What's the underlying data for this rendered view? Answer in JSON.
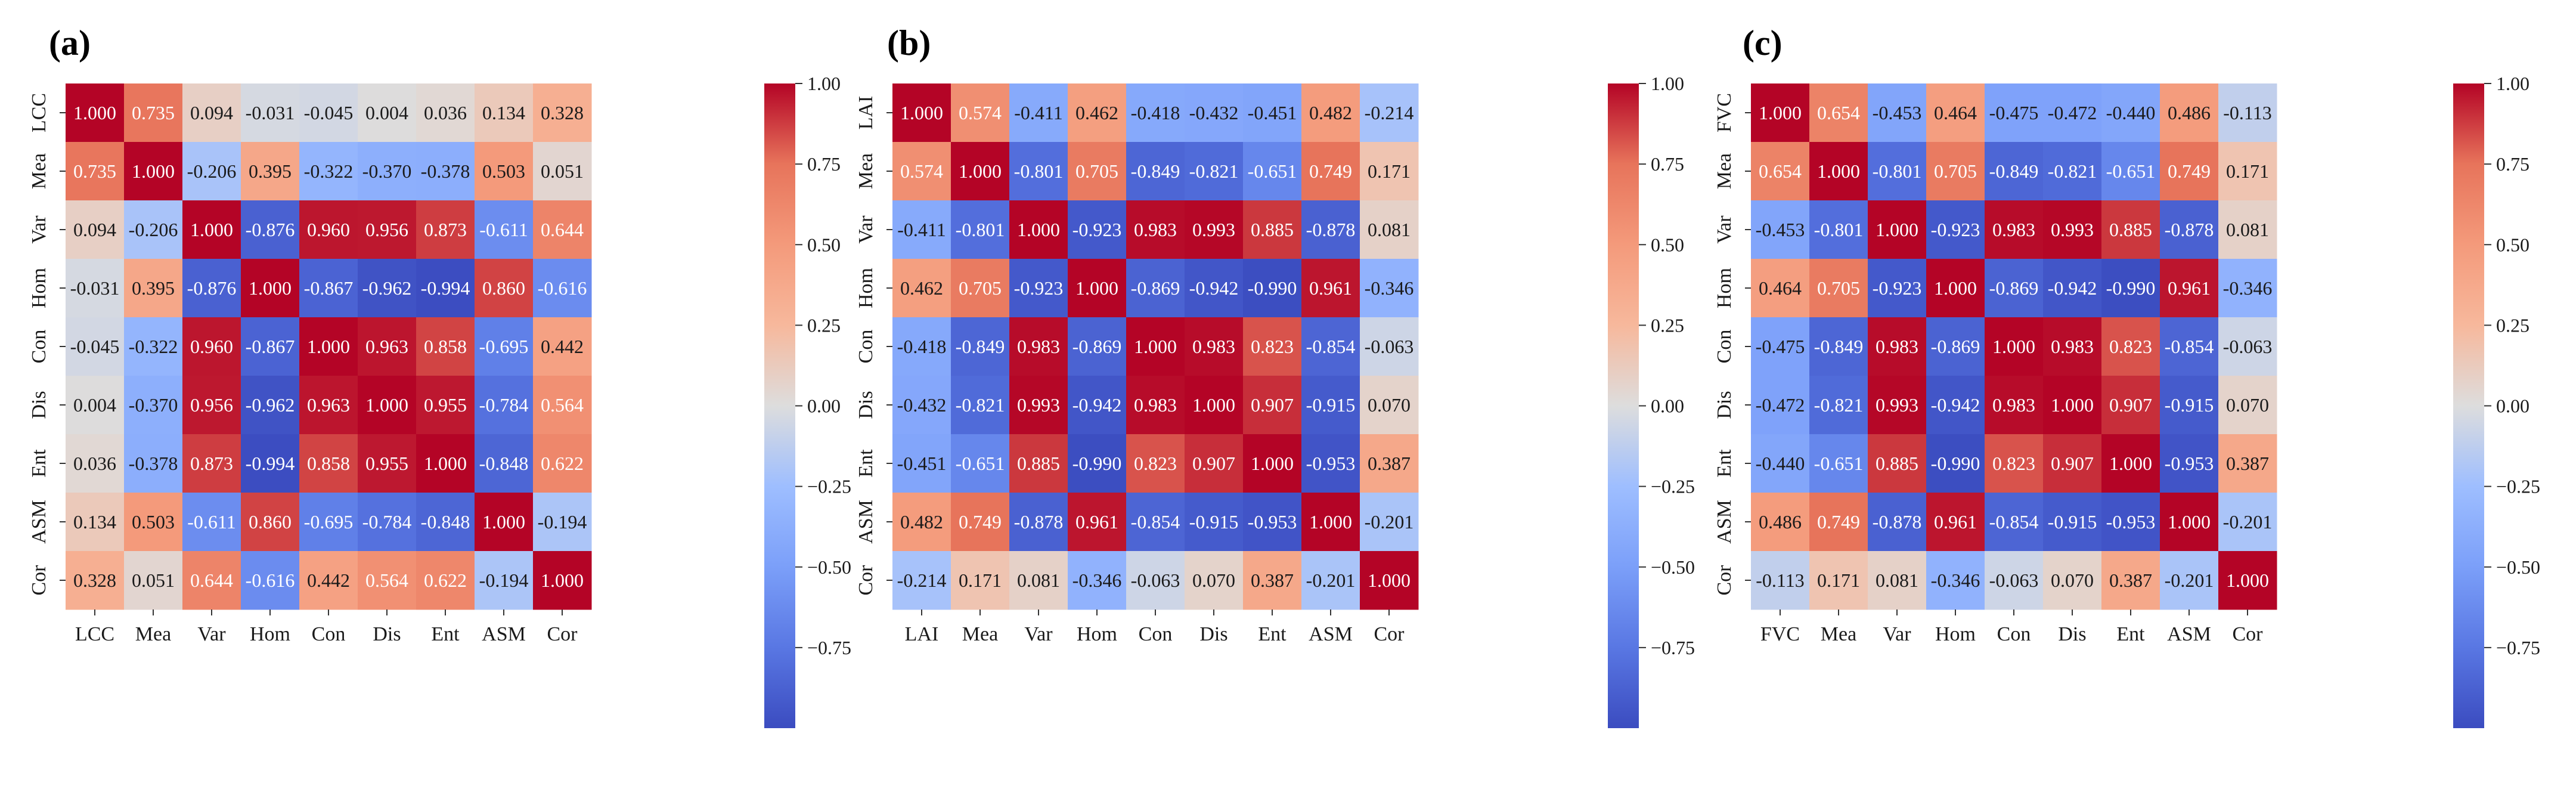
{
  "chart_data": [
    {
      "type": "heatmap",
      "panel_label": "(a)",
      "categories": [
        "LCC",
        "Mea",
        "Var",
        "Hom",
        "Con",
        "Dis",
        "Ent",
        "ASM",
        "Cor"
      ],
      "values": [
        [
          1.0,
          0.735,
          0.094,
          -0.031,
          -0.045,
          0.004,
          0.036,
          0.134,
          0.328
        ],
        [
          0.735,
          1.0,
          -0.206,
          0.395,
          -0.322,
          -0.37,
          -0.378,
          0.503,
          0.051
        ],
        [
          0.094,
          -0.206,
          1.0,
          -0.876,
          0.96,
          0.956,
          0.873,
          -0.611,
          0.644
        ],
        [
          -0.031,
          0.395,
          -0.876,
          1.0,
          -0.867,
          -0.962,
          -0.994,
          0.86,
          -0.616
        ],
        [
          -0.045,
          -0.322,
          0.96,
          -0.867,
          1.0,
          0.963,
          0.858,
          -0.695,
          0.442
        ],
        [
          0.004,
          -0.37,
          0.956,
          -0.962,
          0.963,
          1.0,
          0.955,
          -0.784,
          0.564
        ],
        [
          0.036,
          -0.378,
          0.873,
          -0.994,
          0.858,
          0.955,
          1.0,
          -0.848,
          0.622
        ],
        [
          0.134,
          0.503,
          -0.611,
          0.86,
          -0.695,
          -0.784,
          -0.848,
          1.0,
          -0.194
        ],
        [
          0.328,
          0.051,
          0.644,
          -0.616,
          0.442,
          0.564,
          0.622,
          -0.194,
          1.0
        ]
      ],
      "colorbar": {
        "vmin": -1.0,
        "vmax": 1.0,
        "ticks": [
          "1.00",
          "0.75",
          "0.50",
          "0.25",
          "0.00",
          "−0.25",
          "−0.50",
          "−0.75"
        ],
        "tick_values": [
          1.0,
          0.75,
          0.5,
          0.25,
          0.0,
          -0.25,
          -0.5,
          -0.75
        ]
      }
    },
    {
      "type": "heatmap",
      "panel_label": "(b)",
      "categories": [
        "LAI",
        "Mea",
        "Var",
        "Hom",
        "Con",
        "Dis",
        "Ent",
        "ASM",
        "Cor"
      ],
      "values": [
        [
          1.0,
          0.574,
          -0.411,
          0.462,
          -0.418,
          -0.432,
          -0.451,
          0.482,
          -0.214
        ],
        [
          0.574,
          1.0,
          -0.801,
          0.705,
          -0.849,
          -0.821,
          -0.651,
          0.749,
          0.171
        ],
        [
          -0.411,
          -0.801,
          1.0,
          -0.923,
          0.983,
          0.993,
          0.885,
          -0.878,
          0.081
        ],
        [
          0.462,
          0.705,
          -0.923,
          1.0,
          -0.869,
          -0.942,
          -0.99,
          0.961,
          -0.346
        ],
        [
          -0.418,
          -0.849,
          0.983,
          -0.869,
          1.0,
          0.983,
          0.823,
          -0.854,
          -0.063
        ],
        [
          -0.432,
          -0.821,
          0.993,
          -0.942,
          0.983,
          1.0,
          0.907,
          -0.915,
          0.07
        ],
        [
          -0.451,
          -0.651,
          0.885,
          -0.99,
          0.823,
          0.907,
          1.0,
          -0.953,
          0.387
        ],
        [
          0.482,
          0.749,
          -0.878,
          0.961,
          -0.854,
          -0.915,
          -0.953,
          1.0,
          -0.201
        ],
        [
          -0.214,
          0.171,
          0.081,
          -0.346,
          -0.063,
          0.07,
          0.387,
          -0.201,
          1.0
        ]
      ],
      "colorbar": {
        "vmin": -1.0,
        "vmax": 1.0,
        "ticks": [
          "1.00",
          "0.75",
          "0.50",
          "0.25",
          "0.00",
          "−0.25",
          "−0.50",
          "−0.75"
        ],
        "tick_values": [
          1.0,
          0.75,
          0.5,
          0.25,
          0.0,
          -0.25,
          -0.5,
          -0.75
        ]
      }
    },
    {
      "type": "heatmap",
      "panel_label": "(c)",
      "categories": [
        "FVC",
        "Mea",
        "Var",
        "Hom",
        "Con",
        "Dis",
        "Ent",
        "ASM",
        "Cor"
      ],
      "values": [
        [
          1.0,
          0.654,
          -0.453,
          0.464,
          -0.475,
          -0.472,
          -0.44,
          0.486,
          -0.113
        ],
        [
          0.654,
          1.0,
          -0.801,
          0.705,
          -0.849,
          -0.821,
          -0.651,
          0.749,
          0.171
        ],
        [
          -0.453,
          -0.801,
          1.0,
          -0.923,
          0.983,
          0.993,
          0.885,
          -0.878,
          0.081
        ],
        [
          0.464,
          0.705,
          -0.923,
          1.0,
          -0.869,
          -0.942,
          -0.99,
          0.961,
          -0.346
        ],
        [
          -0.475,
          -0.849,
          0.983,
          -0.869,
          1.0,
          0.983,
          0.823,
          -0.854,
          -0.063
        ],
        [
          -0.472,
          -0.821,
          0.993,
          -0.942,
          0.983,
          1.0,
          0.907,
          -0.915,
          0.07
        ],
        [
          -0.44,
          -0.651,
          0.885,
          -0.99,
          0.823,
          0.907,
          1.0,
          -0.953,
          0.387
        ],
        [
          0.486,
          0.749,
          -0.878,
          0.961,
          -0.854,
          -0.915,
          -0.953,
          1.0,
          -0.201
        ],
        [
          -0.113,
          0.171,
          0.081,
          -0.346,
          -0.063,
          0.07,
          0.387,
          -0.201,
          1.0
        ]
      ],
      "colorbar": {
        "vmin": -1.0,
        "vmax": 1.0,
        "ticks": [
          "1.00",
          "0.75",
          "0.50",
          "0.25",
          "0.00",
          "−0.25",
          "−0.50",
          "−0.75"
        ],
        "tick_values": [
          1.0,
          0.75,
          0.5,
          0.25,
          0.0,
          -0.25,
          -0.5,
          -0.75
        ]
      }
    }
  ],
  "colors": {
    "cool": "#3b4cc0",
    "neutral": "#dddddd",
    "warm": "#b40426",
    "text": "#1a1a1a"
  }
}
